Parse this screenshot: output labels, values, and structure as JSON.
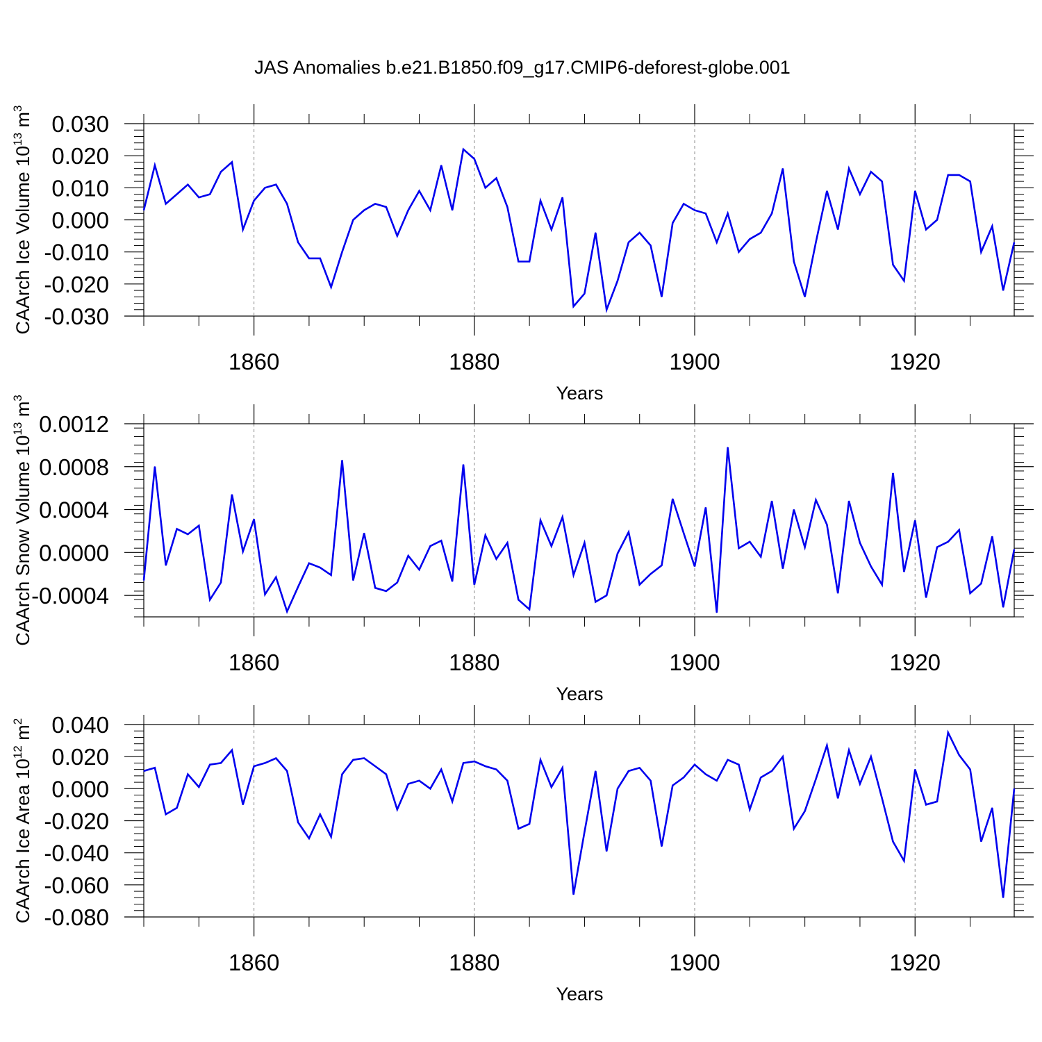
{
  "title": "JAS Anomalies b.e21.B1850.f09_g17.CMIP6-deforest-globe.001",
  "colors": {
    "line": "#0000ee",
    "axis": "#000000",
    "grid": "#888888",
    "background": "#ffffff"
  },
  "chart_data": [
    {
      "type": "line",
      "name": "ice-volume",
      "ylabel": "CAArch Ice Volume 10",
      "ylabel_exp": "13",
      "ylabel_unit": " m",
      "ylabel_unit_exp": "3",
      "xlabel": "Years",
      "xlim": [
        1850,
        1929
      ],
      "ylim": [
        -0.03,
        0.03
      ],
      "yticks": [
        -0.03,
        -0.02,
        -0.01,
        0.0,
        0.01,
        0.02,
        0.03
      ],
      "ytick_labels": [
        "-0.030",
        "-0.020",
        "-0.010",
        "0.000",
        "0.010",
        "0.020",
        "0.030"
      ],
      "xticks": [
        1860,
        1880,
        1900,
        1920
      ],
      "xtick_labels": [
        "1860",
        "1880",
        "1900",
        "1920"
      ],
      "grid_x": true,
      "series": [
        {
          "name": "CAArch Ice Volume",
          "x_start": 1850,
          "values": [
            0.003,
            0.017,
            0.005,
            0.008,
            0.011,
            0.007,
            0.008,
            0.015,
            0.018,
            -0.003,
            0.006,
            0.01,
            0.011,
            0.005,
            -0.007,
            -0.012,
            -0.012,
            -0.021,
            -0.01,
            0.0,
            0.003,
            0.005,
            0.004,
            -0.005,
            0.003,
            0.009,
            0.003,
            0.017,
            0.003,
            0.022,
            0.019,
            0.01,
            0.013,
            0.004,
            -0.013,
            -0.013,
            0.006,
            -0.003,
            0.007,
            -0.027,
            -0.023,
            -0.004,
            -0.028,
            -0.019,
            -0.007,
            -0.004,
            -0.008,
            -0.024,
            -0.001,
            0.005,
            0.003,
            0.002,
            -0.007,
            0.002,
            -0.01,
            -0.006,
            -0.004,
            0.002,
            0.016,
            -0.013,
            -0.024,
            -0.007,
            0.009,
            -0.003,
            0.016,
            0.008,
            0.015,
            0.012,
            -0.014,
            -0.019,
            0.009,
            -0.003,
            0.0,
            0.014,
            0.014,
            0.012,
            -0.01,
            -0.002,
            -0.022,
            -0.007
          ]
        }
      ]
    },
    {
      "type": "line",
      "name": "snow-volume",
      "ylabel": "CAArch Snow Volume 10",
      "ylabel_exp": "13",
      "ylabel_unit": " m",
      "ylabel_unit_exp": "3",
      "xlabel": "Years",
      "xlim": [
        1850,
        1929
      ],
      "ylim": [
        -0.0006,
        0.0012
      ],
      "yticks": [
        -0.0004,
        0.0,
        0.0004,
        0.0008,
        0.0012
      ],
      "ytick_labels": [
        "-0.0004",
        "0.0000",
        "0.0004",
        "0.0008",
        "0.0012"
      ],
      "xticks": [
        1860,
        1880,
        1900,
        1920
      ],
      "xtick_labels": [
        "1860",
        "1880",
        "1900",
        "1920"
      ],
      "grid_x": true,
      "series": [
        {
          "name": "CAArch Snow Volume",
          "x_start": 1850,
          "values": [
            -0.00026,
            0.0008,
            -0.00012,
            0.00022,
            0.00017,
            0.00025,
            -0.00044,
            -0.00028,
            0.00054,
            1e-05,
            0.00031,
            -0.00039,
            -0.00023,
            -0.00055,
            -0.00032,
            -0.0001,
            -0.00014,
            -0.00021,
            0.00086,
            -0.00026,
            0.00018,
            -0.00033,
            -0.00036,
            -0.00028,
            -3e-05,
            -0.00016,
            6e-05,
            0.00011,
            -0.00027,
            0.00082,
            -0.0003,
            0.00016,
            -6e-05,
            9e-05,
            -0.00044,
            -0.00053,
            0.0003,
            6e-05,
            0.00033,
            -0.00021,
            9e-05,
            -0.00046,
            -0.0004,
            -1e-05,
            0.00019,
            -0.0003,
            -0.0002,
            -0.00012,
            0.0005,
            0.00018,
            -0.00013,
            0.00042,
            -0.00056,
            0.00098,
            4e-05,
            0.0001,
            -4e-05,
            0.00048,
            -0.00015,
            0.0004,
            5e-05,
            0.00049,
            0.00026,
            -0.00038,
            0.00048,
            9e-05,
            -0.00013,
            -0.0003,
            0.00074,
            -0.00018,
            0.0003,
            -0.00042,
            5e-05,
            0.0001,
            0.00021,
            -0.00038,
            -0.00029,
            0.00015,
            -0.00051,
            3e-05
          ]
        }
      ]
    },
    {
      "type": "line",
      "name": "ice-area",
      "ylabel": "CAArch Ice Area 10",
      "ylabel_exp": "12",
      "ylabel_unit": " m",
      "ylabel_unit_exp": "2",
      "xlabel": "Years",
      "xlim": [
        1850,
        1929
      ],
      "ylim": [
        -0.08,
        0.04
      ],
      "yticks": [
        -0.08,
        -0.06,
        -0.04,
        -0.02,
        0.0,
        0.02,
        0.04
      ],
      "ytick_labels": [
        "-0.080",
        "-0.060",
        "-0.040",
        "-0.020",
        "0.000",
        "0.020",
        "0.040"
      ],
      "xticks": [
        1860,
        1880,
        1900,
        1920
      ],
      "xtick_labels": [
        "1860",
        "1880",
        "1900",
        "1920"
      ],
      "grid_x": true,
      "series": [
        {
          "name": "CAArch Ice Area",
          "x_start": 1850,
          "values": [
            0.011,
            0.013,
            -0.016,
            -0.012,
            0.009,
            0.001,
            0.015,
            0.016,
            0.024,
            -0.01,
            0.014,
            0.016,
            0.019,
            0.011,
            -0.021,
            -0.031,
            -0.016,
            -0.03,
            0.009,
            0.018,
            0.019,
            0.014,
            0.009,
            -0.013,
            0.003,
            0.005,
            0.0,
            0.012,
            -0.008,
            0.016,
            0.017,
            0.014,
            0.012,
            0.005,
            -0.025,
            -0.022,
            0.018,
            0.001,
            0.013,
            -0.066,
            -0.027,
            0.011,
            -0.039,
            0.0,
            0.011,
            0.013,
            0.005,
            -0.036,
            0.002,
            0.007,
            0.015,
            0.009,
            0.005,
            0.018,
            0.015,
            -0.013,
            0.007,
            0.011,
            0.02,
            -0.025,
            -0.014,
            0.006,
            0.027,
            -0.006,
            0.024,
            0.003,
            0.02,
            -0.006,
            -0.033,
            -0.045,
            0.012,
            -0.01,
            -0.008,
            0.035,
            0.021,
            0.012,
            -0.033,
            -0.012,
            -0.068,
            0.0
          ]
        }
      ]
    }
  ]
}
